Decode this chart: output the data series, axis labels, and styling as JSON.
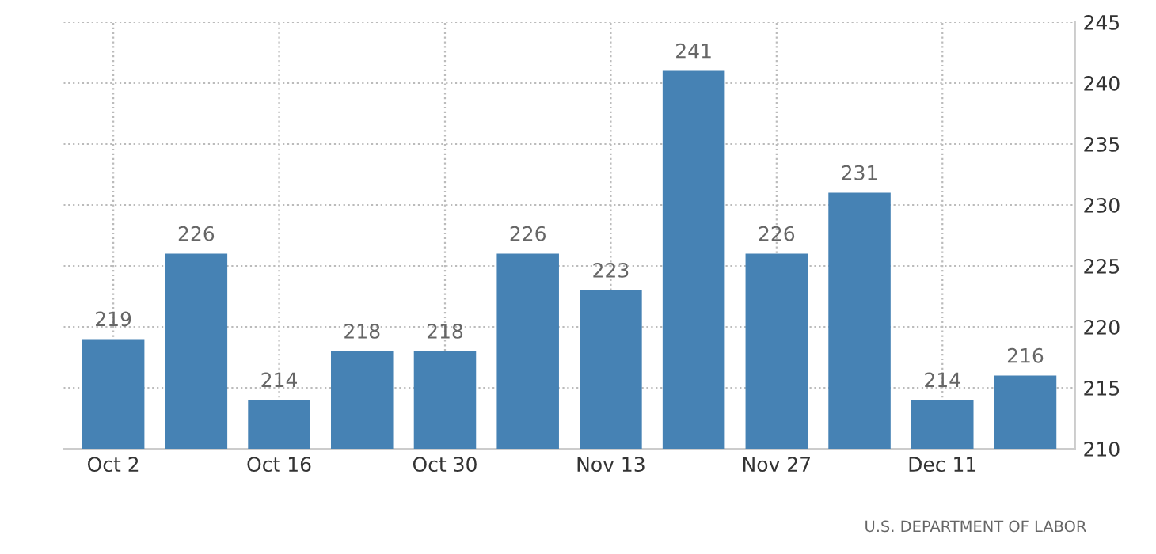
{
  "chart_data": {
    "type": "bar",
    "categories": [
      "Oct 2",
      null,
      "Oct 16",
      null,
      "Oct 30",
      null,
      "Nov 13",
      null,
      "Nov 27",
      null,
      "Dec 11",
      null
    ],
    "values": [
      219,
      226,
      214,
      218,
      218,
      226,
      223,
      241,
      226,
      231,
      214,
      216
    ],
    "color": "#4682b4",
    "ylim": [
      210,
      245
    ],
    "yticks": [
      210,
      215,
      220,
      225,
      230,
      235,
      240,
      245
    ],
    "grid": true,
    "data_labels": true,
    "annotations": [
      "U.S. DEPARTMENT OF LABOR"
    ]
  }
}
